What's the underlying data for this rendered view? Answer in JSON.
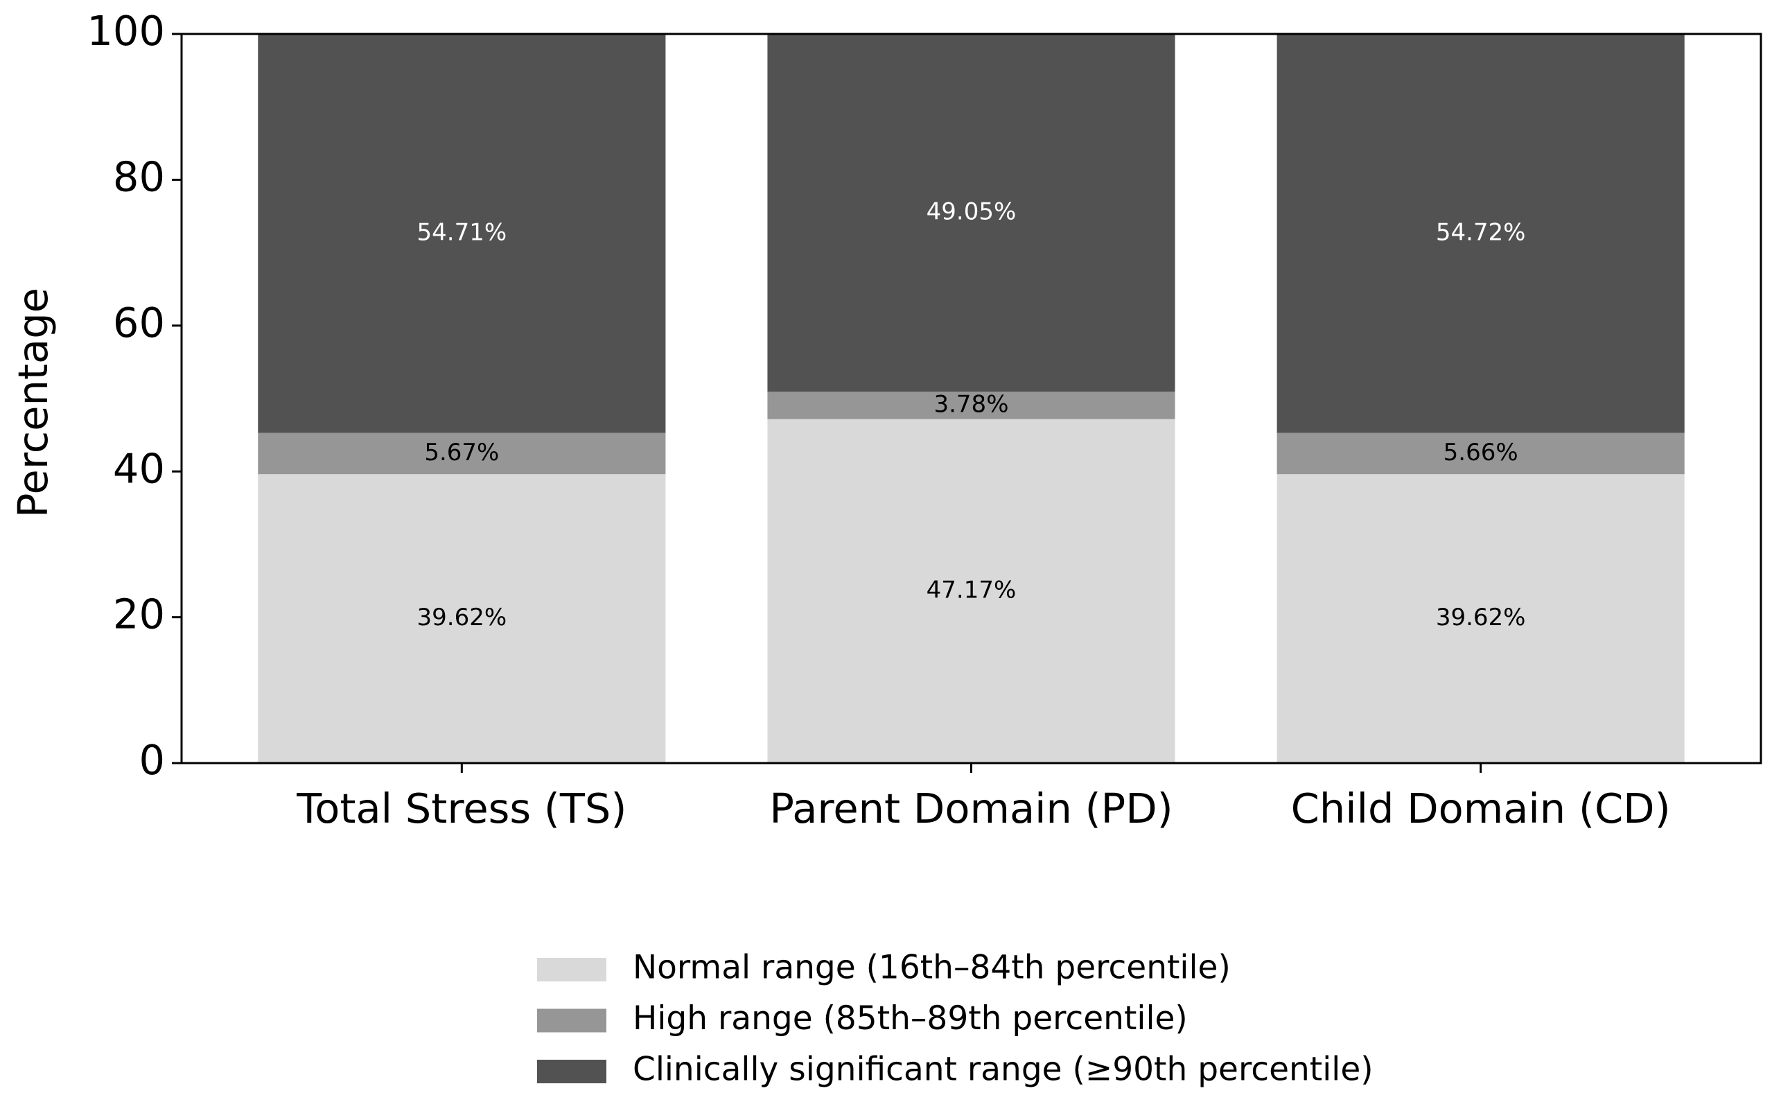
{
  "chart_data": {
    "type": "stacked_bar",
    "y_label": "Percentage",
    "categories": [
      "Total Stress (TS)",
      "Parent Domain (PD)",
      "Child Domain (CD)"
    ],
    "series": [
      {
        "name": "Normal range (16th–84th percentile)",
        "color": "#d9d9d9",
        "values": [
          39.62,
          47.17,
          39.62
        ],
        "value_labels": [
          "39.62%",
          "47.17%",
          "39.62%"
        ]
      },
      {
        "name": "High range (85th–89th percentile)",
        "color": "#969696",
        "values": [
          5.67,
          3.78,
          5.66
        ],
        "value_labels": [
          "5.67%",
          "3.78%",
          "5.66%"
        ]
      },
      {
        "name": "Clinically significant range (≥90th percentile)",
        "color": "#525252",
        "values": [
          54.71,
          49.05,
          54.72
        ],
        "value_labels": [
          "54.71%",
          "49.05%",
          "54.72%"
        ]
      }
    ],
    "ylim": [
      0,
      100
    ],
    "yticks": [
      0,
      20,
      40,
      60,
      80,
      100
    ],
    "grid": false
  }
}
